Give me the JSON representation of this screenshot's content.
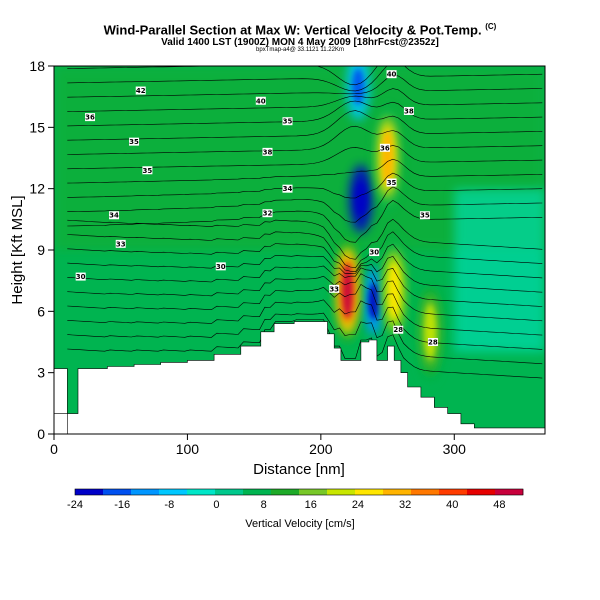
{
  "header": {
    "title": "Wind-Parallel Section at Max W: Vertical Velocity & Pot.Temp.",
    "title_sup": "(C)",
    "subtitle": "Valid 1400 LST (1900Z) MON 4 May 2009 [18hrFcst@2352z]",
    "byline": "bpxTmap-a4@ 33.1121 11.22Km"
  },
  "chart_data": {
    "type": "heatmap",
    "xlabel": "Distance [nm]",
    "ylabel": "Height [Kft MSL]",
    "xlim": [
      0,
      368
    ],
    "ylim": [
      0,
      18
    ],
    "x_ticks": [
      0,
      100,
      200,
      300
    ],
    "y_ticks": [
      0,
      3,
      6,
      9,
      12,
      15,
      18
    ],
    "colorbar": {
      "label": "Vertical Velocity [cm/s]",
      "range": [
        -24,
        52
      ],
      "ticks": [
        -24,
        -16,
        -8,
        0,
        8,
        16,
        24,
        32,
        40,
        48
      ],
      "colors": [
        "#0000c8",
        "#0050f0",
        "#0096ff",
        "#00c8ff",
        "#00e6c8",
        "#00c88c",
        "#00b450",
        "#1eaa28",
        "#78c828",
        "#c8e600",
        "#ffe600",
        "#ffb400",
        "#ff7800",
        "#ff3c00",
        "#e60000",
        "#c8003c"
      ]
    },
    "terrain_profile": [
      [
        0,
        3.2
      ],
      [
        5,
        3.2
      ],
      [
        10,
        1.0
      ],
      [
        368,
        0.0
      ]
    ],
    "terrain_steps": [
      [
        10,
        1.0
      ],
      [
        18,
        3.2
      ],
      [
        40,
        3.3
      ],
      [
        60,
        3.4
      ],
      [
        80,
        3.5
      ],
      [
        100,
        3.6
      ],
      [
        120,
        3.9
      ],
      [
        140,
        4.3
      ],
      [
        155,
        5.0
      ],
      [
        165,
        5.4
      ],
      [
        180,
        5.5
      ],
      [
        195,
        5.5
      ],
      [
        205,
        4.9
      ],
      [
        210,
        4.2
      ],
      [
        215,
        3.6
      ],
      [
        222,
        3.6
      ],
      [
        230,
        4.5
      ],
      [
        236,
        4.6
      ],
      [
        242,
        3.6
      ],
      [
        250,
        4.3
      ],
      [
        255,
        3.6
      ],
      [
        260,
        3.0
      ],
      [
        265,
        2.3
      ],
      [
        275,
        1.8
      ],
      [
        285,
        1.3
      ],
      [
        295,
        1.0
      ],
      [
        305,
        0.5
      ],
      [
        315,
        0.3
      ],
      [
        368,
        0.0
      ]
    ],
    "updrafts": [
      {
        "x": 220,
        "y": 7.0,
        "value": 48
      },
      {
        "x": 250,
        "y": 13.5,
        "value": 32
      },
      {
        "x": 255,
        "y": 7.0,
        "value": 28
      },
      {
        "x": 282,
        "y": 5.0,
        "value": 20
      }
    ],
    "downdrafts": [
      {
        "x": 230,
        "y": 11.5,
        "value": -20
      },
      {
        "x": 240,
        "y": 6.5,
        "value": -12
      },
      {
        "x": 228,
        "y": 17.0,
        "value": -8
      }
    ],
    "contour_labels": [
      {
        "text": "42",
        "x": 65,
        "y": 16.8
      },
      {
        "text": "36",
        "x": 27,
        "y": 15.5
      },
      {
        "text": "40",
        "x": 155,
        "y": 16.3
      },
      {
        "text": "35",
        "x": 60,
        "y": 14.3
      },
      {
        "text": "35",
        "x": 175,
        "y": 15.3
      },
      {
        "text": "38",
        "x": 160,
        "y": 13.8
      },
      {
        "text": "35",
        "x": 70,
        "y": 12.9
      },
      {
        "text": "34",
        "x": 175,
        "y": 12.0
      },
      {
        "text": "34",
        "x": 45,
        "y": 10.7
      },
      {
        "text": "32",
        "x": 160,
        "y": 10.8
      },
      {
        "text": "33",
        "x": 50,
        "y": 9.3
      },
      {
        "text": "30",
        "x": 125,
        "y": 8.2
      },
      {
        "text": "30",
        "x": 20,
        "y": 7.7
      },
      {
        "text": "33",
        "x": 210,
        "y": 7.1
      },
      {
        "text": "30",
        "x": 240,
        "y": 8.9
      },
      {
        "text": "40",
        "x": 253,
        "y": 17.6
      },
      {
        "text": "38",
        "x": 266,
        "y": 15.8
      },
      {
        "text": "36",
        "x": 248,
        "y": 14.0
      },
      {
        "text": "35",
        "x": 253,
        "y": 12.3
      },
      {
        "text": "35",
        "x": 278,
        "y": 10.7
      },
      {
        "text": "28",
        "x": 258,
        "y": 5.1
      },
      {
        "text": "28",
        "x": 284,
        "y": 4.5
      }
    ]
  }
}
